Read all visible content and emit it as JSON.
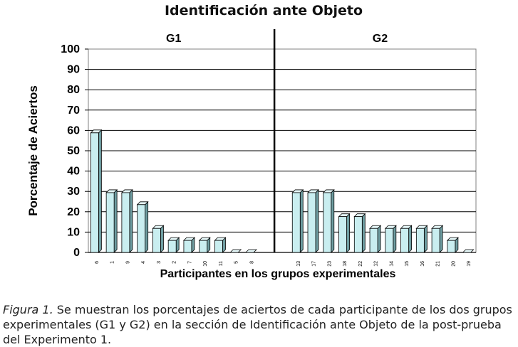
{
  "chart_data": {
    "type": "bar",
    "title": "Identificación ante Objeto",
    "xlabel": "Participantes en los grupos experimentales",
    "ylabel": "Porcentaje de Aciertos",
    "ylim": [
      0,
      100
    ],
    "yticks": [
      "0",
      "10",
      "20",
      "30",
      "40",
      "50",
      "60",
      "70",
      "80",
      "90",
      "100"
    ],
    "grid": true,
    "groups": [
      {
        "name": "G1",
        "categories": [
          "6",
          "1",
          "9",
          "4",
          "3",
          "2",
          "7",
          "10",
          "11",
          "5",
          "8"
        ],
        "values": [
          58.8,
          29.4,
          29.4,
          23.5,
          11.8,
          5.9,
          5.9,
          5.9,
          5.9,
          0,
          0
        ]
      },
      {
        "name": "G2",
        "categories": [
          "13",
          "17",
          "23",
          "18",
          "22",
          "12",
          "14",
          "15",
          "16",
          "21",
          "20",
          "19"
        ],
        "values": [
          29.4,
          29.4,
          29.4,
          17.6,
          17.6,
          11.8,
          11.8,
          11.8,
          11.8,
          11.8,
          5.9,
          0
        ]
      }
    ],
    "colors": {
      "bar_face": "#c9eef0",
      "bar_side": "#6f9ea2",
      "bar_top": "#e6f8f9",
      "divider": "#000000"
    }
  },
  "caption": {
    "label": "Figura 1.",
    "text": " Se muestran los porcentajes de aciertos de cada participante de los dos grupos experimentales (G1 y G2) en la sección de Identificación ante Objeto de la post-prueba del Experimento 1."
  }
}
